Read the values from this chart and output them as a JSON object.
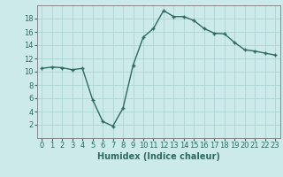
{
  "x": [
    0,
    1,
    2,
    3,
    4,
    5,
    6,
    7,
    8,
    9,
    10,
    11,
    12,
    13,
    14,
    15,
    16,
    17,
    18,
    19,
    20,
    21,
    22,
    23
  ],
  "y": [
    10.5,
    10.7,
    10.6,
    10.3,
    10.5,
    5.8,
    2.5,
    1.8,
    4.5,
    11.0,
    15.2,
    16.5,
    19.2,
    18.3,
    18.3,
    17.7,
    16.5,
    15.8,
    15.7,
    14.4,
    13.3,
    13.1,
    12.8,
    12.5
  ],
  "line_color": "#2e6b5e",
  "marker": "+",
  "marker_size": 3,
  "bg_color": "#cceaea",
  "grid_color": "#aed4d4",
  "xlabel": "Humidex (Indice chaleur)",
  "xlim": [
    -0.5,
    23.5
  ],
  "ylim": [
    0,
    20
  ],
  "yticks": [
    2,
    4,
    6,
    8,
    10,
    12,
    14,
    16,
    18
  ],
  "xticks": [
    0,
    1,
    2,
    3,
    4,
    5,
    6,
    7,
    8,
    9,
    10,
    11,
    12,
    13,
    14,
    15,
    16,
    17,
    18,
    19,
    20,
    21,
    22,
    23
  ],
  "xlabel_fontsize": 7,
  "tick_fontsize": 6,
  "line_width": 1.0
}
